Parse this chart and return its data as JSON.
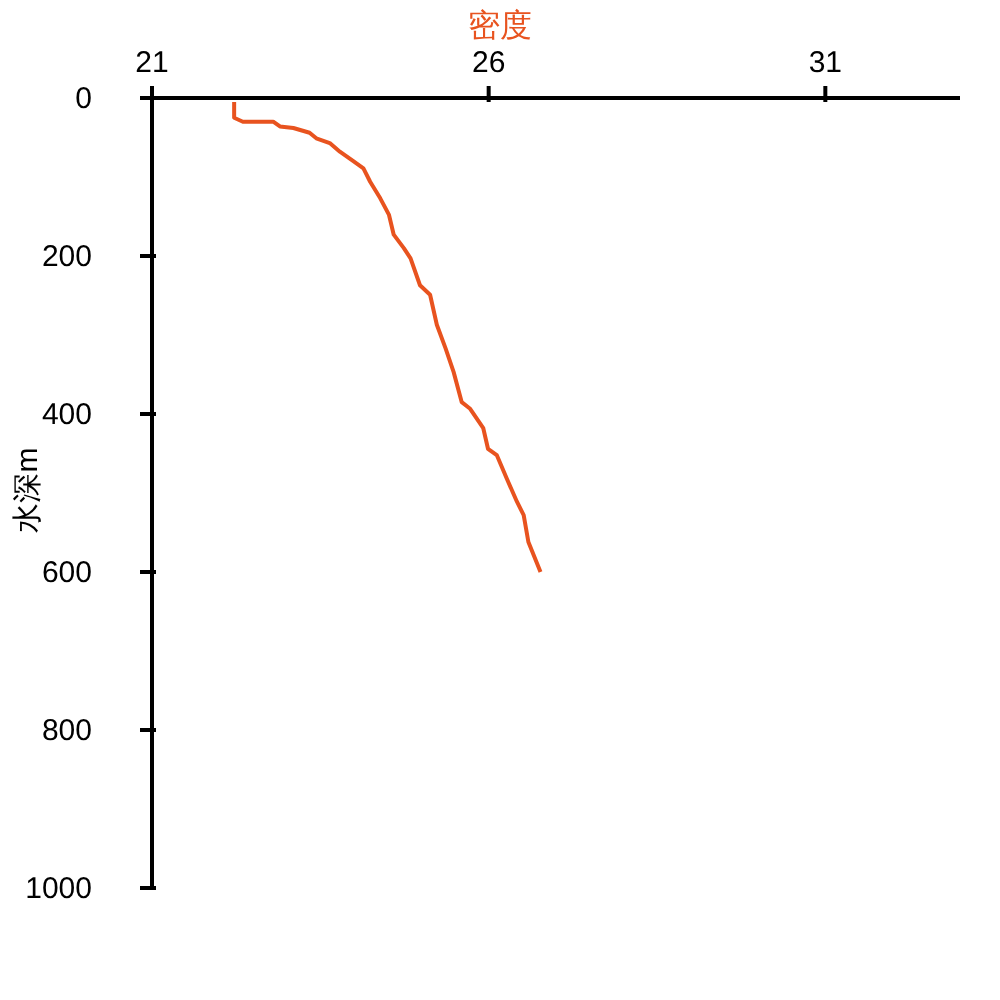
{
  "chart_data": {
    "type": "line",
    "xlabel": "密度",
    "ylabel": "水深m",
    "x": [
      22.22,
      22.22,
      22.35,
      22.8,
      22.9,
      23.1,
      23.34,
      23.44,
      23.64,
      23.79,
      23.99,
      24.14,
      24.24,
      24.39,
      24.52,
      24.59,
      24.74,
      24.84,
      24.98,
      25.13,
      25.23,
      25.36,
      25.48,
      25.6,
      25.72,
      25.92,
      25.99,
      26.12,
      26.27,
      26.42,
      26.52,
      26.59,
      26.77
    ],
    "values": [
      5,
      25,
      30,
      30,
      36,
      38,
      44,
      51,
      57,
      68,
      80,
      89,
      106,
      127,
      148,
      173,
      190,
      203,
      237,
      249,
      287,
      317,
      347,
      385,
      393,
      418,
      444,
      452,
      482,
      511,
      528,
      562,
      600
    ],
    "color": "#e8531f",
    "xlim": [
      21,
      33
    ],
    "xticks": [
      21,
      26,
      31
    ],
    "ylim": [
      1000,
      0
    ],
    "yticks": [
      0,
      200,
      400,
      600,
      800,
      1000
    ],
    "grid": false,
    "legend": false,
    "marker": "none",
    "line_style": "solid"
  }
}
